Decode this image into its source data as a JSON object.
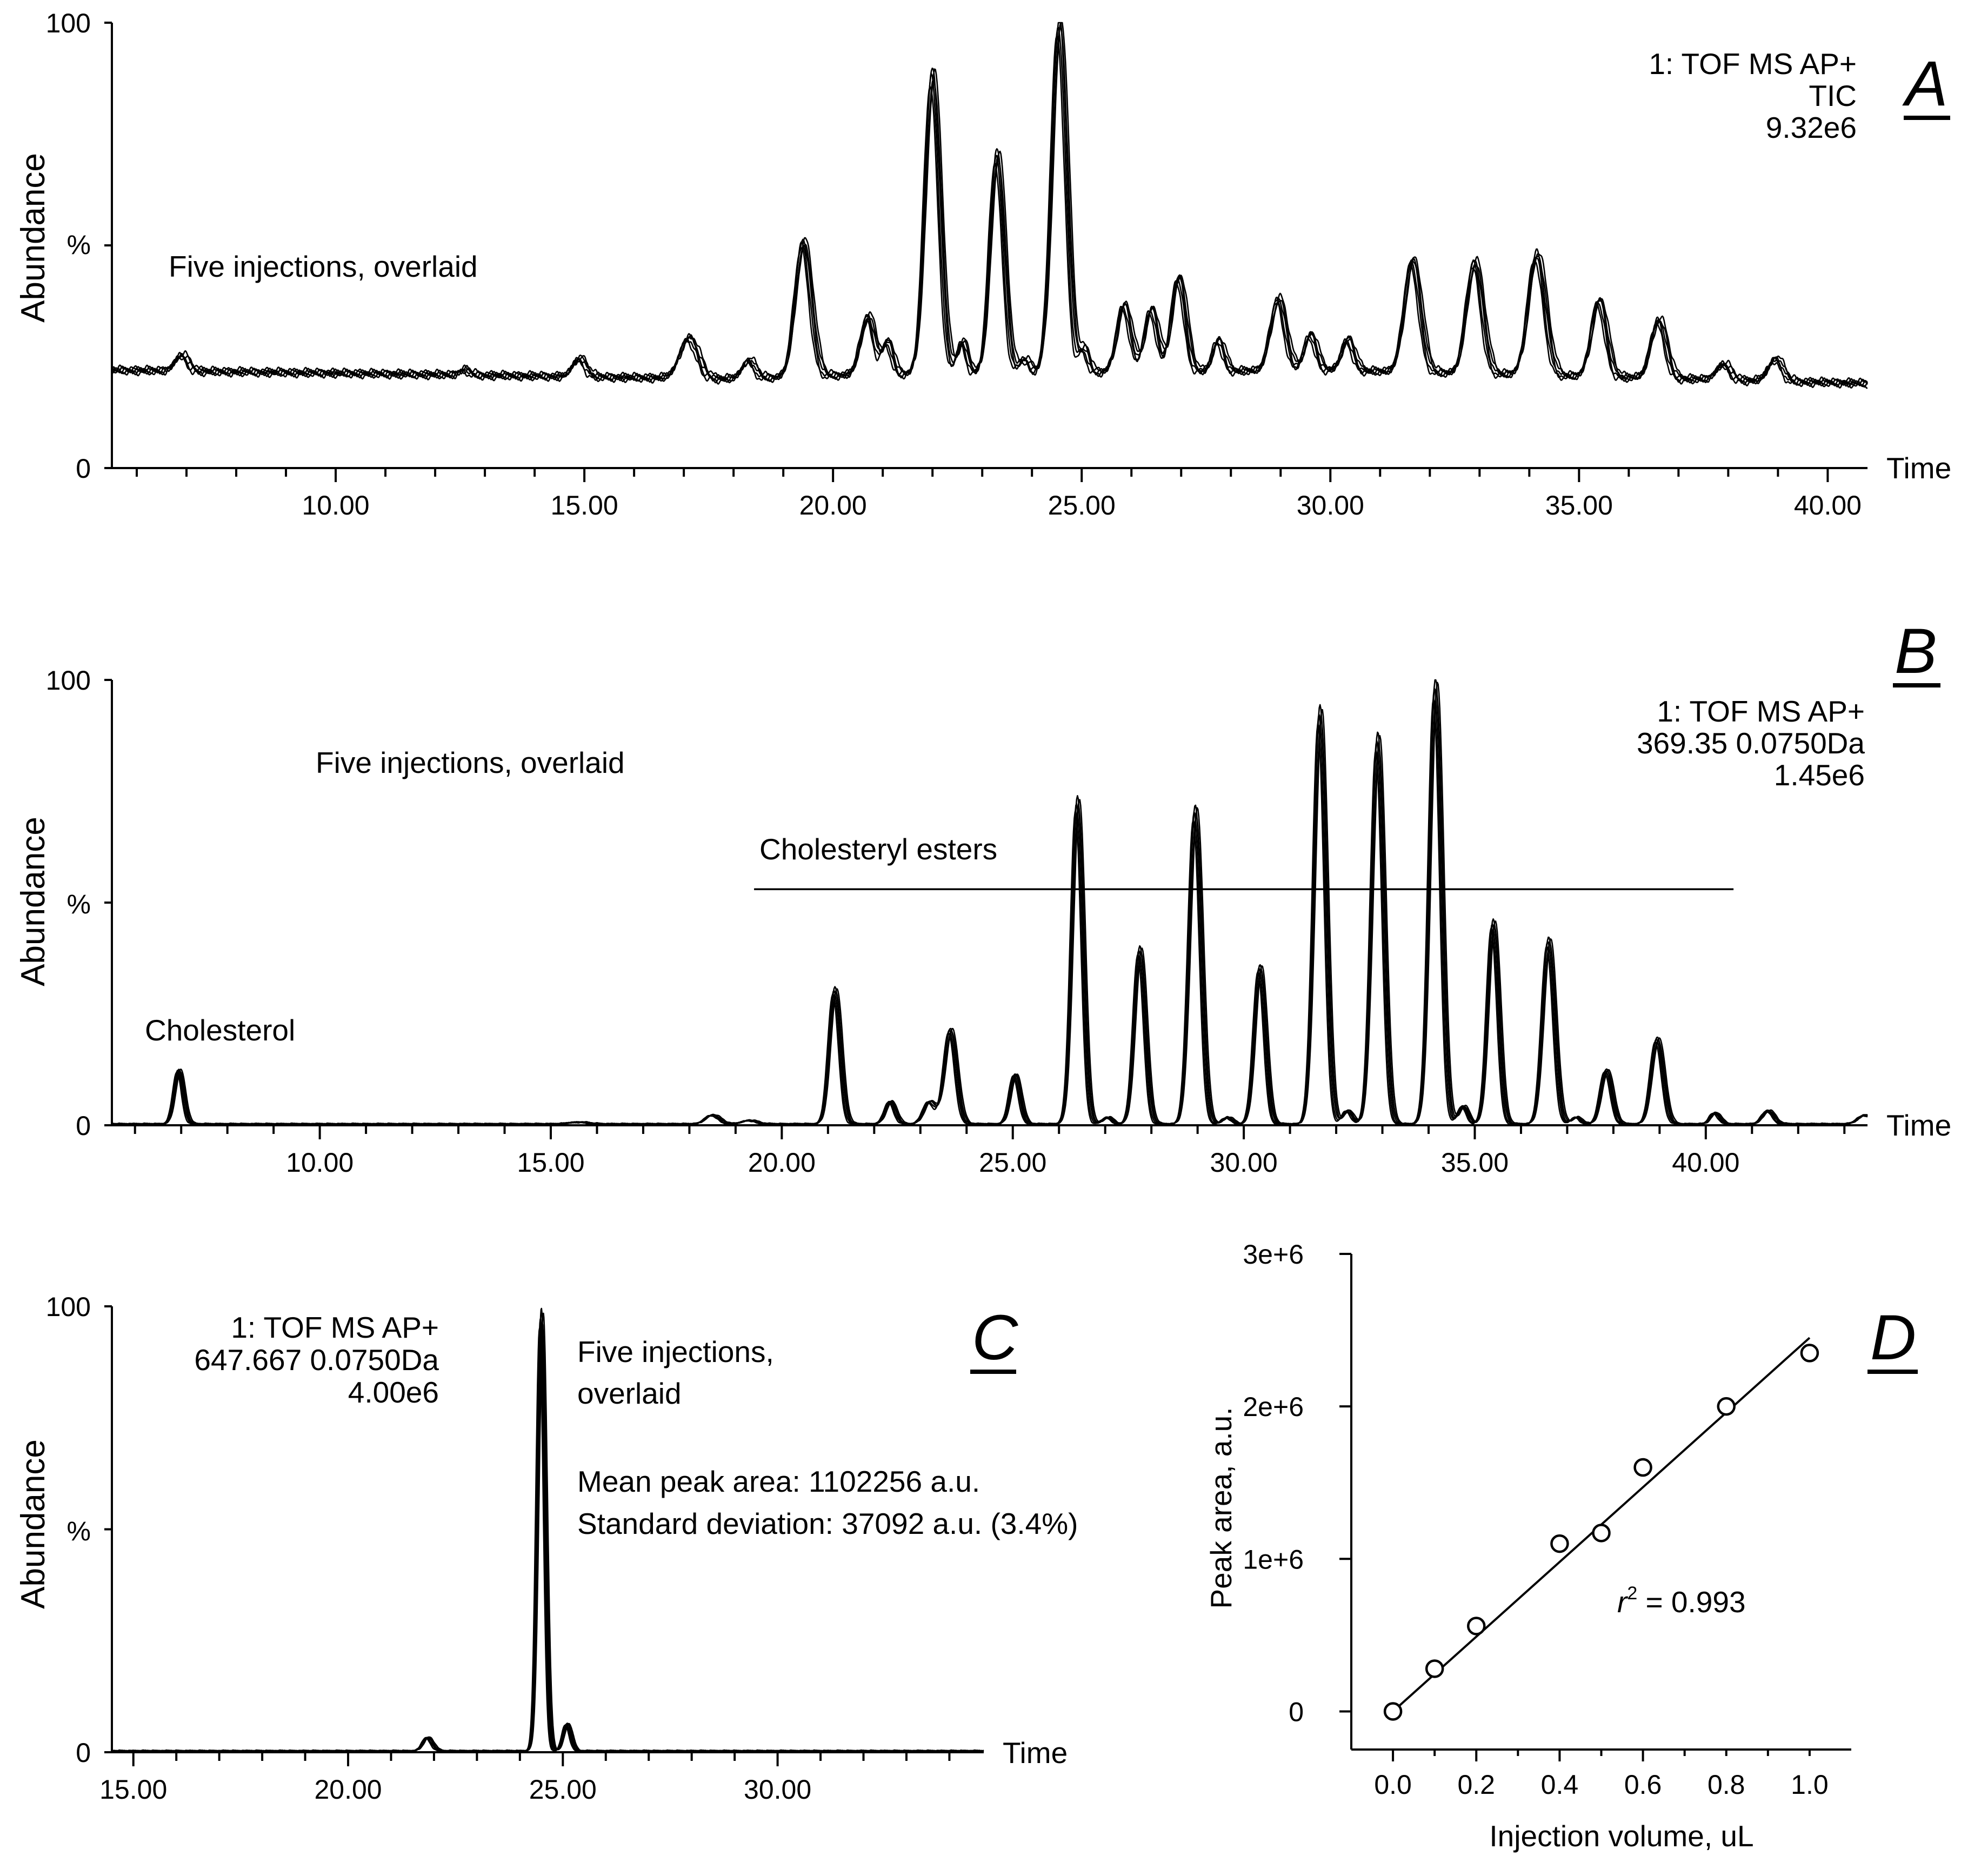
{
  "chart_data": [
    {
      "panel": "A",
      "type": "line",
      "title": "Five injections, overlaid",
      "info_lines": [
        "1: TOF MS AP+",
        "TIC",
        "9.32e6"
      ],
      "ylabel": "Abundance",
      "ylabel_unit": "%",
      "xlabel": "Time",
      "xlim": [
        5.5,
        40.8
      ],
      "ylim": [
        0,
        100
      ],
      "y_ticks": [
        "0",
        "100"
      ],
      "x_ticks": [
        "10.00",
        "15.00",
        "20.00",
        "25.00",
        "30.00",
        "35.00",
        "40.00"
      ],
      "x_tick_values": [
        10,
        15,
        20,
        25,
        30,
        35,
        40
      ],
      "series_count": 5,
      "baseline": {
        "x": [
          5.5,
          12,
          18,
          20.5,
          30,
          40.8
        ],
        "y": [
          22,
          21,
          20,
          21,
          22,
          19
        ]
      },
      "peaks": [
        {
          "t": 6.9,
          "h": 3.5,
          "w": 0.13
        },
        {
          "t": 12.6,
          "h": 1.2,
          "w": 0.1
        },
        {
          "t": 14.9,
          "h": 4,
          "w": 0.13
        },
        {
          "t": 17.1,
          "h": 9,
          "w": 0.18
        },
        {
          "t": 18.3,
          "h": 4,
          "w": 0.13
        },
        {
          "t": 19.4,
          "h": 30,
          "w": 0.16
        },
        {
          "t": 20.7,
          "h": 13,
          "w": 0.14
        },
        {
          "t": 21.1,
          "h": 7,
          "w": 0.1
        },
        {
          "t": 22.0,
          "h": 67,
          "w": 0.15
        },
        {
          "t": 22.6,
          "h": 7,
          "w": 0.1
        },
        {
          "t": 23.3,
          "h": 49,
          "w": 0.14
        },
        {
          "t": 23.85,
          "h": 3,
          "w": 0.1
        },
        {
          "t": 24.55,
          "h": 78,
          "w": 0.15
        },
        {
          "t": 25.05,
          "h": 5,
          "w": 0.09
        },
        {
          "t": 25.85,
          "h": 15,
          "w": 0.14
        },
        {
          "t": 26.4,
          "h": 14,
          "w": 0.13
        },
        {
          "t": 26.95,
          "h": 21,
          "w": 0.14
        },
        {
          "t": 27.75,
          "h": 7,
          "w": 0.11
        },
        {
          "t": 28.95,
          "h": 16,
          "w": 0.15
        },
        {
          "t": 29.6,
          "h": 8,
          "w": 0.12
        },
        {
          "t": 30.35,
          "h": 7,
          "w": 0.12
        },
        {
          "t": 31.65,
          "h": 25,
          "w": 0.16
        },
        {
          "t": 32.9,
          "h": 25,
          "w": 0.16
        },
        {
          "t": 34.15,
          "h": 27,
          "w": 0.17
        },
        {
          "t": 35.4,
          "h": 17,
          "w": 0.15
        },
        {
          "t": 36.6,
          "h": 13,
          "w": 0.15
        },
        {
          "t": 37.9,
          "h": 3.5,
          "w": 0.14
        },
        {
          "t": 38.95,
          "h": 5,
          "w": 0.14
        }
      ]
    },
    {
      "panel": "B",
      "type": "line",
      "title": "Five injections, overlaid",
      "info_lines": [
        "1: TOF MS AP+",
        "369.35 0.0750Da",
        "1.45e6"
      ],
      "ylabel": "Abundance",
      "ylabel_unit": "%",
      "xlabel": "Time",
      "xlim": [
        5.5,
        43.5
      ],
      "ylim": [
        0,
        100
      ],
      "y_ticks": [
        "0",
        "100"
      ],
      "x_ticks": [
        "10.00",
        "15.00",
        "20.00",
        "25.00",
        "30.00",
        "35.00",
        "40.00"
      ],
      "x_tick_values": [
        10,
        15,
        20,
        25,
        30,
        35,
        40
      ],
      "series_count": 5,
      "annotations": {
        "compound": "Cholesterol",
        "ester_group": "Cholesteryl esters",
        "ester_range": [
          19.4,
          40.6
        ],
        "ester_line_y": 53
      },
      "baseline": {
        "x": [
          5.5,
          43.5
        ],
        "y": [
          0.3,
          0.3
        ]
      },
      "peaks": [
        {
          "t": 6.95,
          "h": 12,
          "w": 0.1
        },
        {
          "t": 15.6,
          "h": 0.4,
          "w": 0.2
        },
        {
          "t": 18.5,
          "h": 2,
          "w": 0.15
        },
        {
          "t": 19.3,
          "h": 0.8,
          "w": 0.15
        },
        {
          "t": 21.15,
          "h": 30,
          "w": 0.12
        },
        {
          "t": 22.35,
          "h": 5,
          "w": 0.11
        },
        {
          "t": 23.2,
          "h": 5,
          "w": 0.13
        },
        {
          "t": 23.65,
          "h": 21,
          "w": 0.13
        },
        {
          "t": 25.05,
          "h": 11,
          "w": 0.11
        },
        {
          "t": 26.4,
          "h": 72,
          "w": 0.12
        },
        {
          "t": 27.05,
          "h": 1.5,
          "w": 0.1
        },
        {
          "t": 27.75,
          "h": 39,
          "w": 0.12
        },
        {
          "t": 28.95,
          "h": 70,
          "w": 0.13
        },
        {
          "t": 29.65,
          "h": 1.5,
          "w": 0.1
        },
        {
          "t": 30.35,
          "h": 35,
          "w": 0.12
        },
        {
          "t": 31.65,
          "h": 92,
          "w": 0.13
        },
        {
          "t": 32.25,
          "h": 3,
          "w": 0.1
        },
        {
          "t": 32.9,
          "h": 86,
          "w": 0.13
        },
        {
          "t": 34.15,
          "h": 98,
          "w": 0.13
        },
        {
          "t": 34.75,
          "h": 4,
          "w": 0.1
        },
        {
          "t": 35.4,
          "h": 45,
          "w": 0.12
        },
        {
          "t": 36.6,
          "h": 41,
          "w": 0.13
        },
        {
          "t": 37.2,
          "h": 1.5,
          "w": 0.1
        },
        {
          "t": 37.85,
          "h": 12,
          "w": 0.12
        },
        {
          "t": 38.95,
          "h": 19,
          "w": 0.13
        },
        {
          "t": 40.2,
          "h": 2.5,
          "w": 0.1
        },
        {
          "t": 41.35,
          "h": 3,
          "w": 0.12
        },
        {
          "t": 43.45,
          "h": 2,
          "w": 0.15
        }
      ]
    },
    {
      "panel": "C",
      "type": "line",
      "title": [
        "Five injections,",
        "overlaid"
      ],
      "stats": [
        "Mean peak area: 1102256 a.u.",
        "Standard deviation: 37092 a.u. (3.4%)"
      ],
      "info_lines": [
        "1: TOF MS AP+",
        "647.667 0.0750Da",
        "4.00e6"
      ],
      "ylabel": "Abundance",
      "ylabel_unit": "%",
      "xlabel": "Time",
      "xlim": [
        14.5,
        34.8
      ],
      "ylim": [
        0,
        100
      ],
      "y_ticks": [
        "0",
        "100"
      ],
      "x_ticks": [
        "15.00",
        "20.00",
        "25.00",
        "30.00"
      ],
      "x_tick_values": [
        15,
        20,
        25,
        30
      ],
      "series_count": 5,
      "baseline": {
        "x": [
          14.5,
          34.8
        ],
        "y": [
          0.3,
          0.3
        ]
      },
      "peaks": [
        {
          "t": 21.85,
          "h": 3,
          "w": 0.11
        },
        {
          "t": 24.5,
          "h": 97,
          "w": 0.09
        },
        {
          "t": 25.1,
          "h": 6,
          "w": 0.09
        }
      ]
    },
    {
      "panel": "D",
      "type": "scatter",
      "xlabel": "Injection volume, uL",
      "ylabel": "Peak area, a.u.",
      "xlim": [
        -0.1,
        1.1
      ],
      "ylim": [
        -250000,
        3000000
      ],
      "x_ticks": [
        "0.0",
        "0.2",
        "0.4",
        "0.6",
        "0.8",
        "1.0"
      ],
      "x_tick_values": [
        0,
        0.2,
        0.4,
        0.6,
        0.8,
        1.0
      ],
      "y_ticks": [
        "0",
        "1e+6",
        "2e+6",
        "3e+6"
      ],
      "y_tick_values": [
        0,
        1000000,
        2000000,
        3000000
      ],
      "x": [
        0,
        0.1,
        0.2,
        0.4,
        0.5,
        0.6,
        0.8,
        1.0
      ],
      "y": [
        0,
        280000,
        560000,
        1100000,
        1170000,
        1600000,
        2000000,
        2350000
      ],
      "fit": {
        "x": [
          0,
          1.0
        ],
        "y": [
          0,
          2450000
        ]
      },
      "annotation_var": "r",
      "annotation_exp": "2",
      "annotation_value": " = 0.993"
    }
  ]
}
